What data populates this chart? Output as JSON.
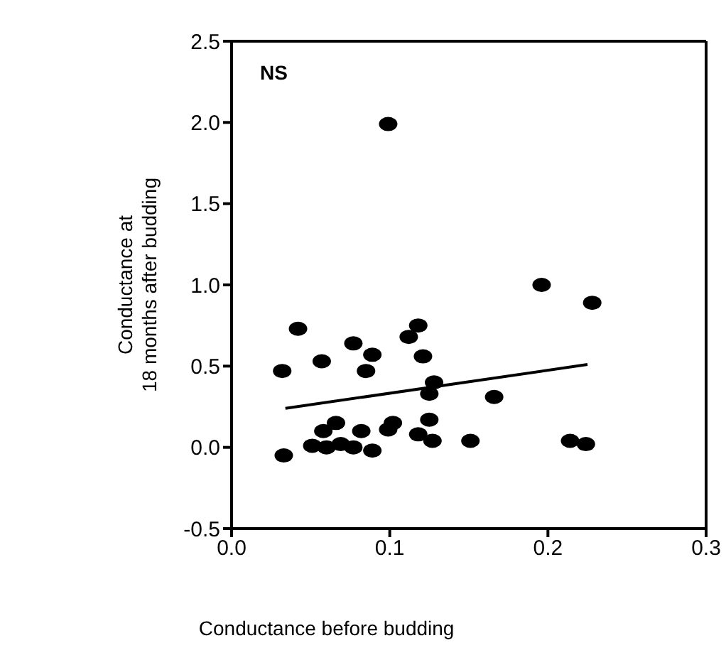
{
  "chart_data": {
    "type": "scatter",
    "xlabel": "Conductance before budding",
    "ylabel": "Conductance at 18 months after budding",
    "annotations": [
      "NS"
    ],
    "xlim": [
      0.0,
      0.3
    ],
    "xticks": [
      {
        "value": 0,
        "label": "0.0"
      },
      0.1,
      0.2,
      0.3
    ],
    "ylim": [
      -0.5,
      2.5
    ],
    "yticks": [
      -0.5,
      {
        "value": 0,
        "label": "0.0"
      },
      0.5,
      {
        "value": 1,
        "label": "1.0"
      },
      1.5,
      {
        "value": 2,
        "label": "2.0"
      },
      2.5
    ],
    "marker": "circle",
    "series": [
      {
        "color": "#000000",
        "x": [
          0.032,
          0.042,
          0.057,
          0.077,
          0.089,
          0.085,
          0.112,
          0.118,
          0.121,
          0.128,
          0.125,
          0.196,
          0.228,
          0.166,
          0.033,
          0.051,
          0.06,
          0.058,
          0.066,
          0.069,
          0.077,
          0.082,
          0.089,
          0.099,
          0.102,
          0.118,
          0.125,
          0.127,
          0.151,
          0.214,
          0.224,
          0.099
        ],
        "values": [
          0.47,
          0.73,
          0.53,
          0.64,
          0.57,
          0.47,
          0.68,
          0.75,
          0.56,
          0.4,
          0.33,
          1.0,
          0.89,
          0.31,
          -0.05,
          0.01,
          0.0,
          0.1,
          0.15,
          0.02,
          0.0,
          0.1,
          -0.02,
          0.11,
          0.15,
          0.08,
          0.17,
          0.04,
          0.04,
          0.04,
          0.02,
          1.99
        ]
      },
      {
        "type": "line",
        "color": "#000000",
        "line_style": "solid",
        "marker": "none",
        "x": [
          0.034,
          0.225
        ],
        "values": [
          0.24,
          0.51
        ]
      }
    ]
  }
}
